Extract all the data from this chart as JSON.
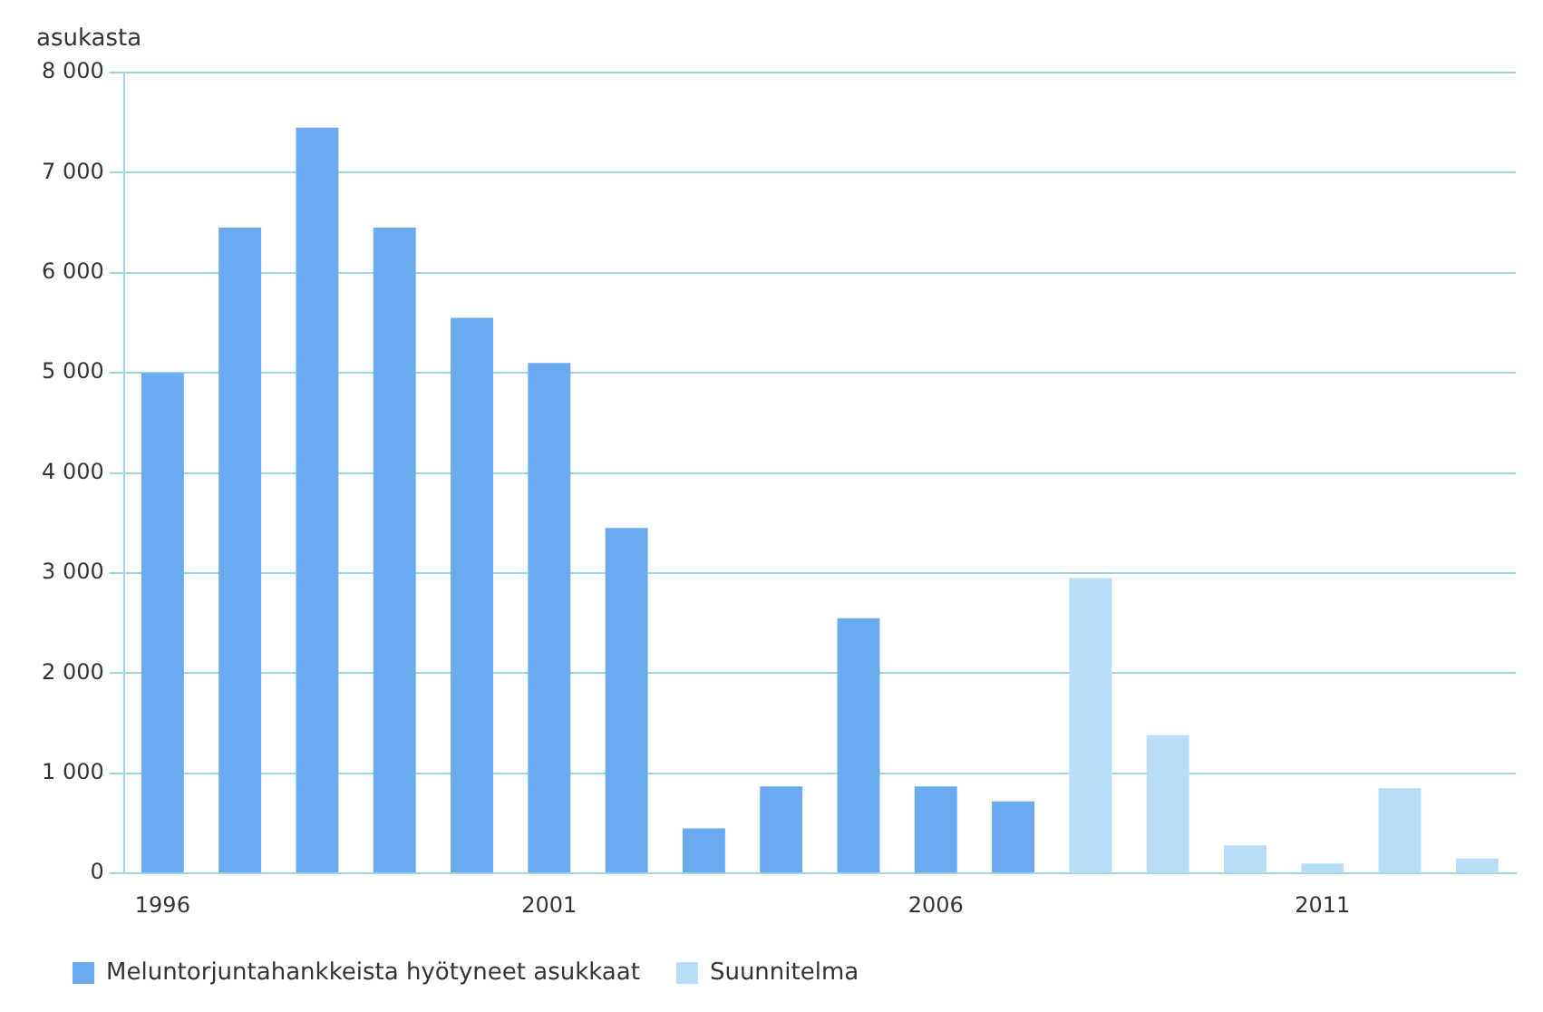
{
  "chart_data": {
    "type": "bar",
    "ylabel": "asukasta",
    "categories": [
      "1996",
      null,
      null,
      null,
      null,
      "2001",
      null,
      null,
      null,
      null,
      "2006",
      null,
      null,
      null,
      null,
      "2011",
      null,
      null
    ],
    "series": [
      {
        "name": "Meluntorjuntahankkeista hyötyneet asukkaat",
        "color": "#6aaaf0",
        "values": [
          5000,
          6450,
          7450,
          6450,
          5550,
          5100,
          3450,
          450,
          870,
          2550,
          870,
          720,
          null,
          null,
          null,
          null,
          null,
          null
        ]
      },
      {
        "name": "Suunnitelma",
        "color": "#b8ddf8",
        "values": [
          null,
          null,
          null,
          null,
          null,
          null,
          null,
          null,
          null,
          null,
          null,
          null,
          2950,
          1380,
          280,
          100,
          850,
          150
        ]
      }
    ],
    "ylim": [
      0,
      8000
    ],
    "yticks": [
      {
        "value": 0,
        "label": "0"
      },
      {
        "value": 1000,
        "label": "1 000"
      },
      {
        "value": 2000,
        "label": "2 000"
      },
      {
        "value": 3000,
        "label": "3 000"
      },
      {
        "value": 4000,
        "label": "4 000"
      },
      {
        "value": 5000,
        "label": "5 000"
      },
      {
        "value": 6000,
        "label": "6 000"
      },
      {
        "value": 7000,
        "label": "7 000"
      },
      {
        "value": 8000,
        "label": "8 000"
      }
    ],
    "grid": "y",
    "legend": "bottom"
  }
}
